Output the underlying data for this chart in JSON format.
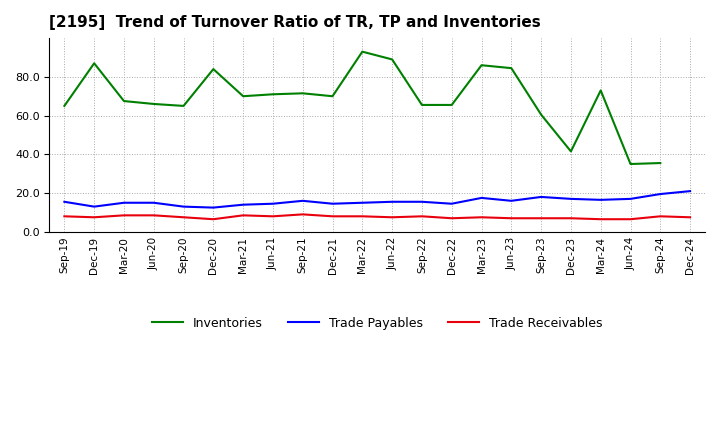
{
  "title": "[2195]  Trend of Turnover Ratio of TR, TP and Inventories",
  "x_labels": [
    "Sep-19",
    "Dec-19",
    "Mar-20",
    "Jun-20",
    "Sep-20",
    "Dec-20",
    "Mar-21",
    "Jun-21",
    "Sep-21",
    "Dec-21",
    "Mar-22",
    "Jun-22",
    "Sep-22",
    "Dec-22",
    "Mar-23",
    "Jun-23",
    "Sep-23",
    "Dec-23",
    "Mar-24",
    "Jun-24",
    "Sep-24",
    "Dec-24"
  ],
  "trade_receivables": [
    8.0,
    7.5,
    8.5,
    8.5,
    7.5,
    6.5,
    8.5,
    8.0,
    9.0,
    8.0,
    8.0,
    7.5,
    8.0,
    7.0,
    7.5,
    7.0,
    7.0,
    7.0,
    6.5,
    6.5,
    8.0,
    7.5
  ],
  "trade_payables": [
    15.5,
    13.0,
    15.0,
    15.0,
    13.0,
    12.5,
    14.0,
    14.5,
    16.0,
    14.5,
    15.0,
    15.5,
    15.5,
    14.5,
    17.5,
    16.0,
    18.0,
    17.0,
    16.5,
    17.0,
    19.5,
    21.0
  ],
  "inventories": [
    65.0,
    87.0,
    67.5,
    66.0,
    65.0,
    84.0,
    70.0,
    71.0,
    71.5,
    70.0,
    93.0,
    89.0,
    65.5,
    65.5,
    86.0,
    84.5,
    60.5,
    41.5,
    73.0,
    35.0,
    35.5,
    null
  ],
  "ylim": [
    0.0,
    100.0
  ],
  "yticks": [
    0.0,
    20.0,
    40.0,
    60.0,
    80.0
  ],
  "line_color_tr": "#e8000d",
  "line_color_tp": "#0000ff",
  "line_color_inv": "#008000",
  "legend_labels": [
    "Trade Receivables",
    "Trade Payables",
    "Inventories"
  ],
  "background_color": "#ffffff",
  "grid_color": "#aaaaaa"
}
